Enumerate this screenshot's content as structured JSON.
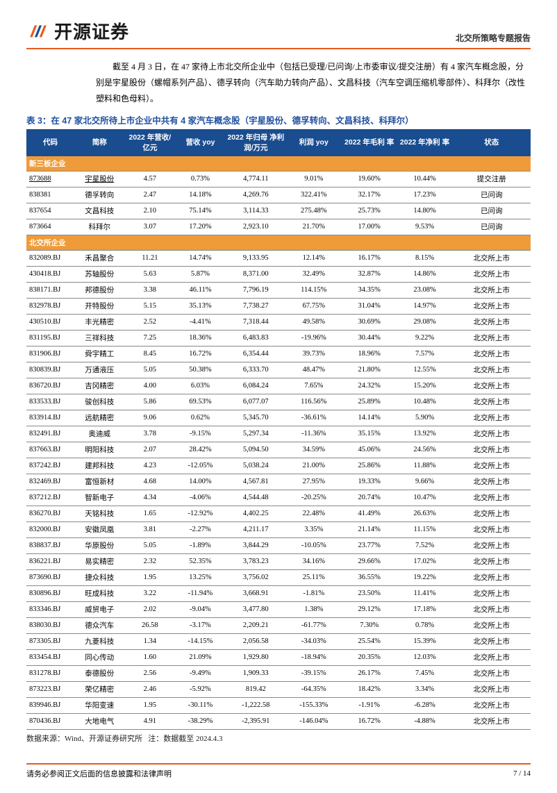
{
  "header": {
    "company_name": "开源证券",
    "report_type": "北交所策略专题报告"
  },
  "intro_text": "截至 4 月 3 日，在 47 家待上市北交所企业中（包括已受理/已问询/上市委审议/提交注册）有 4 家汽车概念股，分别是宇星股份（螺帽系列产品）、德孚转向（汽车助力转向产品）、文昌科技（汽车空调压缩机零部件）、科拜尔（改性塑料和色母料）。",
  "table": {
    "title": "表 3：在 47 家北交所待上市企业中共有 4 家汽车概念股（宇星股份、德孚转向、文昌科技、科拜尔）",
    "columns": [
      "代码",
      "简称",
      "2022 年营收/\n亿元",
      "营收 yoy",
      "2022 年归母\n净利润/万元",
      "利润 yoy",
      "2022 年毛利\n率",
      "2022 年净利\n率",
      "状态"
    ],
    "section1_label": "新三板企业",
    "rows_section1": [
      {
        "code": "873688",
        "name": "宇星股份",
        "rev": "4.57",
        "revy": "0.73%",
        "np": "4,774.11",
        "npy": "9.01%",
        "gm": "19.60%",
        "nm": "10.44%",
        "st": "提交注册",
        "ul": true
      },
      {
        "code": "838381",
        "name": "德孚转向",
        "rev": "2.47",
        "revy": "14.18%",
        "np": "4,269.76",
        "npy": "322.41%",
        "gm": "32.17%",
        "nm": "17.23%",
        "st": "已问询"
      },
      {
        "code": "837654",
        "name": "文昌科技",
        "rev": "2.10",
        "revy": "75.14%",
        "np": "3,114.33",
        "npy": "275.48%",
        "gm": "25.73%",
        "nm": "14.80%",
        "st": "已问询"
      },
      {
        "code": "873664",
        "name": "科拜尔",
        "rev": "3.07",
        "revy": "17.20%",
        "np": "2,923.10",
        "npy": "21.70%",
        "gm": "17.00%",
        "nm": "9.53%",
        "st": "已问询"
      }
    ],
    "section2_label": "北交所企业",
    "rows_section2": [
      {
        "code": "832089.BJ",
        "name": "禾昌聚合",
        "rev": "11.21",
        "revy": "14.74%",
        "np": "9,133.95",
        "npy": "12.14%",
        "gm": "16.17%",
        "nm": "8.15%",
        "st": "北交所上市"
      },
      {
        "code": "430418.BJ",
        "name": "苏轴股份",
        "rev": "5.63",
        "revy": "5.87%",
        "np": "8,371.00",
        "npy": "32.49%",
        "gm": "32.87%",
        "nm": "14.86%",
        "st": "北交所上市"
      },
      {
        "code": "838171.BJ",
        "name": "邦德股份",
        "rev": "3.38",
        "revy": "46.11%",
        "np": "7,796.19",
        "npy": "114.15%",
        "gm": "34.35%",
        "nm": "23.08%",
        "st": "北交所上市"
      },
      {
        "code": "832978.BJ",
        "name": "开特股份",
        "rev": "5.15",
        "revy": "35.13%",
        "np": "7,738.27",
        "npy": "67.75%",
        "gm": "31.04%",
        "nm": "14.97%",
        "st": "北交所上市"
      },
      {
        "code": "430510.BJ",
        "name": "丰光精密",
        "rev": "2.52",
        "revy": "-4.41%",
        "np": "7,318.44",
        "npy": "49.58%",
        "gm": "30.69%",
        "nm": "29.08%",
        "st": "北交所上市"
      },
      {
        "code": "831195.BJ",
        "name": "三祥科技",
        "rev": "7.25",
        "revy": "18.36%",
        "np": "6,483.83",
        "npy": "-19.96%",
        "gm": "30.44%",
        "nm": "9.22%",
        "st": "北交所上市"
      },
      {
        "code": "831906.BJ",
        "name": "舜宇精工",
        "rev": "8.45",
        "revy": "16.72%",
        "np": "6,354.44",
        "npy": "39.73%",
        "gm": "18.96%",
        "nm": "7.57%",
        "st": "北交所上市"
      },
      {
        "code": "830839.BJ",
        "name": "万通液压",
        "rev": "5.05",
        "revy": "50.38%",
        "np": "6,333.70",
        "npy": "48.47%",
        "gm": "21.80%",
        "nm": "12.55%",
        "st": "北交所上市"
      },
      {
        "code": "836720.BJ",
        "name": "吉冈精密",
        "rev": "4.00",
        "revy": "6.03%",
        "np": "6,084.24",
        "npy": "7.65%",
        "gm": "24.32%",
        "nm": "15.20%",
        "st": "北交所上市"
      },
      {
        "code": "833533.BJ",
        "name": "骏创科技",
        "rev": "5.86",
        "revy": "69.53%",
        "np": "6,077.07",
        "npy": "116.56%",
        "gm": "25.89%",
        "nm": "10.48%",
        "st": "北交所上市"
      },
      {
        "code": "833914.BJ",
        "name": "远航精密",
        "rev": "9.06",
        "revy": "0.62%",
        "np": "5,345.70",
        "npy": "-36.61%",
        "gm": "14.14%",
        "nm": "5.90%",
        "st": "北交所上市"
      },
      {
        "code": "832491.BJ",
        "name": "奥迪威",
        "rev": "3.78",
        "revy": "-9.15%",
        "np": "5,297.34",
        "npy": "-11.36%",
        "gm": "35.15%",
        "nm": "13.92%",
        "st": "北交所上市"
      },
      {
        "code": "837663.BJ",
        "name": "明阳科技",
        "rev": "2.07",
        "revy": "28.42%",
        "np": "5,094.50",
        "npy": "34.59%",
        "gm": "45.06%",
        "nm": "24.56%",
        "st": "北交所上市"
      },
      {
        "code": "837242.BJ",
        "name": "建邦科技",
        "rev": "4.23",
        "revy": "-12.05%",
        "np": "5,038.24",
        "npy": "21.00%",
        "gm": "25.86%",
        "nm": "11.88%",
        "st": "北交所上市"
      },
      {
        "code": "832469.BJ",
        "name": "富恒新材",
        "rev": "4.68",
        "revy": "14.00%",
        "np": "4,567.81",
        "npy": "27.95%",
        "gm": "19.33%",
        "nm": "9.66%",
        "st": "北交所上市"
      },
      {
        "code": "837212.BJ",
        "name": "智新电子",
        "rev": "4.34",
        "revy": "-4.06%",
        "np": "4,544.48",
        "npy": "-20.25%",
        "gm": "20.74%",
        "nm": "10.47%",
        "st": "北交所上市"
      },
      {
        "code": "836270.BJ",
        "name": "天铭科技",
        "rev": "1.65",
        "revy": "-12.92%",
        "np": "4,402.25",
        "npy": "22.48%",
        "gm": "41.49%",
        "nm": "26.63%",
        "st": "北交所上市"
      },
      {
        "code": "832000.BJ",
        "name": "安徽凤凰",
        "rev": "3.81",
        "revy": "-2.27%",
        "np": "4,211.17",
        "npy": "3.35%",
        "gm": "21.14%",
        "nm": "11.15%",
        "st": "北交所上市"
      },
      {
        "code": "838837.BJ",
        "name": "华原股份",
        "rev": "5.05",
        "revy": "-1.89%",
        "np": "3,844.29",
        "npy": "-10.05%",
        "gm": "23.77%",
        "nm": "7.52%",
        "st": "北交所上市"
      },
      {
        "code": "836221.BJ",
        "name": "易实精密",
        "rev": "2.32",
        "revy": "52.35%",
        "np": "3,783.23",
        "npy": "34.16%",
        "gm": "29.66%",
        "nm": "17.02%",
        "st": "北交所上市"
      },
      {
        "code": "873690.BJ",
        "name": "捷众科技",
        "rev": "1.95",
        "revy": "13.25%",
        "np": "3,756.02",
        "npy": "25.11%",
        "gm": "36.55%",
        "nm": "19.22%",
        "st": "北交所上市"
      },
      {
        "code": "830896.BJ",
        "name": "旺成科技",
        "rev": "3.22",
        "revy": "-11.94%",
        "np": "3,668.91",
        "npy": "-1.81%",
        "gm": "23.50%",
        "nm": "11.41%",
        "st": "北交所上市"
      },
      {
        "code": "833346.BJ",
        "name": "威贸电子",
        "rev": "2.02",
        "revy": "-9.04%",
        "np": "3,477.80",
        "npy": "1.38%",
        "gm": "29.12%",
        "nm": "17.18%",
        "st": "北交所上市"
      },
      {
        "code": "838030.BJ",
        "name": "德众汽车",
        "rev": "26.58",
        "revy": "-3.17%",
        "np": "2,209.21",
        "npy": "-61.77%",
        "gm": "7.30%",
        "nm": "0.78%",
        "st": "北交所上市"
      },
      {
        "code": "873305.BJ",
        "name": "九菱科技",
        "rev": "1.34",
        "revy": "-14.15%",
        "np": "2,056.58",
        "npy": "-34.03%",
        "gm": "25.54%",
        "nm": "15.39%",
        "st": "北交所上市"
      },
      {
        "code": "833454.BJ",
        "name": "同心传动",
        "rev": "1.60",
        "revy": "21.09%",
        "np": "1,929.80",
        "npy": "-18.94%",
        "gm": "20.35%",
        "nm": "12.03%",
        "st": "北交所上市"
      },
      {
        "code": "831278.BJ",
        "name": "泰德股份",
        "rev": "2.56",
        "revy": "-9.49%",
        "np": "1,909.33",
        "npy": "-39.15%",
        "gm": "26.17%",
        "nm": "7.45%",
        "st": "北交所上市"
      },
      {
        "code": "873223.BJ",
        "name": "荣亿精密",
        "rev": "2.46",
        "revy": "-5.92%",
        "np": "819.42",
        "npy": "-64.35%",
        "gm": "18.42%",
        "nm": "3.34%",
        "st": "北交所上市"
      },
      {
        "code": "839946.BJ",
        "name": "华阳变速",
        "rev": "1.95",
        "revy": "-30.11%",
        "np": "-1,222.58",
        "npy": "-155.33%",
        "gm": "-1.91%",
        "nm": "-6.28%",
        "st": "北交所上市"
      },
      {
        "code": "870436.BJ",
        "name": "大地电气",
        "rev": "4.91",
        "revy": "-38.29%",
        "np": "-2,395.91",
        "npy": "-146.04%",
        "gm": "16.72%",
        "nm": "-4.88%",
        "st": "北交所上市"
      }
    ],
    "source": "数据来源：Wind、开源证券研究所   注：数据截至 2024.4.3"
  },
  "footer": {
    "disclaimer": "请务必参阅正文后面的信息披露和法律声明",
    "page": "7 / 14"
  },
  "colors": {
    "brand_orange": "#e85c1c",
    "table_header": "#1a4d8f",
    "section_row": "#ef9b3a",
    "title_blue": "#2050a0"
  }
}
